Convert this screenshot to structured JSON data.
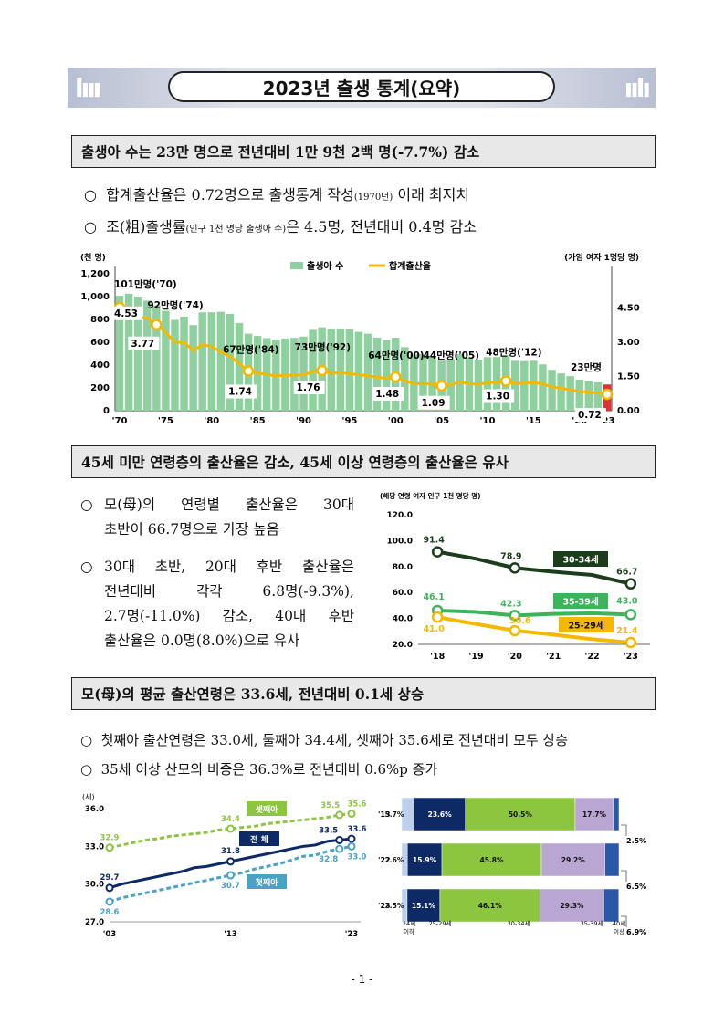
{
  "title": "2023년 출생 통계(요약)",
  "section1": {
    "heading": "출생아 수는 23만 명으로 전년대비 1만 9천 2백 명(-7.7%) 감소",
    "bullets": [
      {
        "mark": "○",
        "a": "합계출산율은 0.72명으로 출생통계 작성",
        "small": "(1970년)",
        "b": " 이래 최저치"
      },
      {
        "mark": "○",
        "a": "조(粗)출생률",
        "small": "(인구 1천 명당 출생아 수)",
        "b": "은 4.5명, 전년대비 0.4명 감소"
      }
    ]
  },
  "chart1": {
    "type": "bar+line",
    "ylabel_left": "(천 명)",
    "ylabel_right": "(가임 여자 1명당 명)",
    "legend": [
      "출생아 수",
      "합계출산율"
    ],
    "yticks_left": [
      "0",
      "200",
      "400",
      "600",
      "800",
      "1,000",
      "1,200"
    ],
    "yticks_right": [
      "0.00",
      "1.50",
      "3.00",
      "4.50"
    ],
    "xticks": [
      "'70",
      "'75",
      "'80",
      "'85",
      "'90",
      "'95",
      "'00",
      "'05",
      "'10",
      "'15",
      "'20",
      "'23"
    ],
    "births_labels": [
      "101만명('70)",
      "92만명('74)",
      "67만명('84)",
      "73만명('92)",
      "64만명('00)",
      "44만명('05)",
      "48만명('12)",
      "23만명"
    ],
    "tfr_labels": [
      "4.53",
      "3.77",
      "1.74",
      "1.76",
      "1.48",
      "1.09",
      "1.30",
      "0.72"
    ],
    "colors": {
      "bar": "#8fd19e",
      "line": "#f5b800"
    }
  },
  "chart_data": [
    {
      "type": "bar",
      "title": "",
      "xlabel": "",
      "ylabel": "(천 명)",
      "ylim": [
        0,
        1200
      ],
      "x": [
        1970,
        1971,
        1972,
        1973,
        1974,
        1975,
        1976,
        1977,
        1978,
        1979,
        1980,
        1981,
        1982,
        1983,
        1984,
        1985,
        1986,
        1987,
        1988,
        1989,
        1990,
        1991,
        1992,
        1993,
        1994,
        1995,
        1996,
        1997,
        1998,
        1999,
        2000,
        2001,
        2002,
        2003,
        2004,
        2005,
        2006,
        2007,
        2008,
        2009,
        2010,
        2011,
        2012,
        2013,
        2014,
        2015,
        2016,
        2017,
        2018,
        2019,
        2020,
        2021,
        2022,
        2023
      ],
      "series": [
        {
          "name": "출생아 수",
          "values": [
            1007,
            1025,
            1000,
            965,
            924,
            875,
            796,
            825,
            750,
            862,
            863,
            867,
            848,
            769,
            675,
            655,
            636,
            623,
            633,
            639,
            650,
            709,
            731,
            716,
            721,
            715,
            691,
            675,
            641,
            620,
            640,
            557,
            495,
            495,
            476,
            438,
            451,
            497,
            466,
            445,
            470,
            471,
            485,
            437,
            435,
            438,
            406,
            358,
            327,
            303,
            272,
            261,
            249,
            230
          ]
        },
        {
          "name": "합계출산율",
          "values": [
            4.53,
            4.54,
            4.12,
            4.07,
            3.77,
            3.43,
            3.0,
            2.99,
            2.64,
            2.9,
            2.82,
            2.57,
            2.39,
            2.06,
            1.74,
            1.66,
            1.58,
            1.53,
            1.55,
            1.56,
            1.57,
            1.71,
            1.76,
            1.65,
            1.66,
            1.63,
            1.57,
            1.54,
            1.46,
            1.43,
            1.48,
            1.31,
            1.18,
            1.19,
            1.16,
            1.09,
            1.13,
            1.26,
            1.19,
            1.15,
            1.23,
            1.24,
            1.3,
            1.19,
            1.21,
            1.24,
            1.17,
            1.05,
            0.98,
            0.92,
            0.84,
            0.81,
            0.78,
            0.72
          ]
        }
      ]
    },
    {
      "type": "line",
      "title": "",
      "ylabel": "(해당 연령 여자 인구 1천 명당 명)",
      "categories": [
        "'18",
        "'19",
        "'20",
        "'21",
        "'22",
        "'23"
      ],
      "ylim": [
        20,
        120
      ],
      "series": [
        {
          "name": "30-34세",
          "values": [
            91.4,
            86.0,
            78.9,
            76.0,
            73.5,
            66.7
          ],
          "color": "#1b3d1b"
        },
        {
          "name": "35-39세",
          "values": [
            46.1,
            45.0,
            42.3,
            43.5,
            44.0,
            43.0
          ],
          "color": "#3cb55a"
        },
        {
          "name": "25-29세",
          "values": [
            41.0,
            35.7,
            30.6,
            27.5,
            24.0,
            21.4
          ],
          "color": "#f5b800"
        }
      ]
    },
    {
      "type": "line",
      "title": "",
      "ylabel": "(세)",
      "x": [
        2003,
        2004,
        2005,
        2006,
        2007,
        2008,
        2009,
        2010,
        2011,
        2012,
        2013,
        2014,
        2015,
        2016,
        2017,
        2018,
        2019,
        2020,
        2021,
        2022,
        2023
      ],
      "ylim": [
        27,
        36
      ],
      "series": [
        {
          "name": "셋째아",
          "values": [
            32.9,
            33.1,
            33.3,
            33.5,
            33.6,
            33.8,
            33.9,
            34.0,
            34.1,
            34.3,
            34.4,
            34.5,
            34.6,
            34.8,
            34.9,
            35.0,
            35.1,
            35.2,
            35.3,
            35.5,
            35.6
          ],
          "color": "#8cc63f"
        },
        {
          "name": "전 체",
          "values": [
            29.7,
            30.0,
            30.2,
            30.4,
            30.6,
            30.8,
            31.0,
            31.3,
            31.4,
            31.6,
            31.8,
            32.0,
            32.2,
            32.4,
            32.6,
            32.8,
            33.0,
            33.1,
            33.4,
            33.5,
            33.6
          ],
          "color": "#0d2a66"
        },
        {
          "name": "첫째아",
          "values": [
            28.6,
            28.9,
            29.1,
            29.3,
            29.5,
            29.7,
            29.9,
            30.1,
            30.3,
            30.5,
            30.7,
            30.9,
            31.2,
            31.4,
            31.6,
            31.9,
            32.2,
            32.3,
            32.6,
            32.8,
            33.0
          ],
          "color": "#4aa3c7"
        }
      ]
    },
    {
      "type": "bar",
      "title": "",
      "categories": [
        "'13",
        "'22",
        "'23"
      ],
      "series": [
        {
          "name": "24세 이하",
          "values": [
            5.7,
            2.6,
            2.5
          ]
        },
        {
          "name": "25-29세",
          "values": [
            23.6,
            15.9,
            15.1
          ]
        },
        {
          "name": "30-34세",
          "values": [
            50.5,
            45.8,
            46.1
          ]
        },
        {
          "name": "35-39세",
          "values": [
            17.7,
            29.2,
            29.3
          ]
        },
        {
          "name": "40세 이상",
          "values": [
            2.5,
            6.5,
            6.9
          ]
        }
      ]
    }
  ],
  "section2": {
    "heading": "45세 미만 연령층의 출산율은 감소, 45세 이상 연령층의 출산율은 유사",
    "b1": {
      "mark": "○",
      "l1": [
        "모(母)의",
        "연령별",
        "출산율은",
        "30대"
      ],
      "l2": "초반이 66.7명으로 가장 높음"
    },
    "b2": {
      "mark": "○",
      "l1": [
        "30대",
        "초반,",
        "20대",
        "후반",
        "출산율은"
      ],
      "l2": [
        "전년대비",
        "각각",
        "6.8명(-9.3%),"
      ],
      "l3": [
        "2.7명(-11.0%)",
        "감소,",
        "40대",
        "후반"
      ],
      "l4": "출산율은 0.0명(8.0%)으로 유사"
    }
  },
  "chart2": {
    "ylabel": "(해당 연령 여자 인구 1천 명당 명)",
    "yticks": [
      "20.0",
      "40.0",
      "60.0",
      "80.0",
      "100.0",
      "120.0"
    ],
    "xticks": [
      "'18",
      "'19",
      "'20",
      "'21",
      "'22",
      "'23"
    ],
    "labels": {
      "a": [
        "91.4",
        "78.9",
        "66.7"
      ],
      "b": [
        "46.1",
        "42.3",
        "43.0"
      ],
      "c": [
        "41.0",
        "30.6",
        "21.4"
      ]
    },
    "legend": [
      "30-34세",
      "35-39세",
      "25-29세"
    ]
  },
  "section3": {
    "heading": "모(母)의 평균 출산연령은 33.6세, 전년대비 0.1세 상승",
    "bullets": [
      {
        "mark": "○",
        "text": "첫째아 출산연령은 33.0세, 둘째아 34.4세, 셋째아 35.6세로 전년대비 모두 상승"
      },
      {
        "mark": "○",
        "text": "35세 이상 산모의 비중은 36.3%로 전년대비 0.6%p 증가"
      }
    ]
  },
  "chart3": {
    "ylabel": "(세)",
    "yticks": [
      "27.0",
      "30.0",
      "33.0",
      "36.0"
    ],
    "xticks": [
      "'03",
      "'13",
      "'23"
    ],
    "labels": {
      "third": [
        "32.9",
        "34.4",
        "35.5",
        "35.6"
      ],
      "all": [
        "29.7",
        "31.8",
        "33.5",
        "33.6"
      ],
      "first": [
        "28.6",
        "30.7",
        "32.8",
        "33.0"
      ]
    },
    "legend": [
      "셋째아",
      "전 체",
      "첫째아"
    ]
  },
  "chart4": {
    "rows": [
      {
        "year": "'13",
        "vals": [
          "5.7%",
          "23.6%",
          "50.5%",
          "17.7%"
        ],
        "after": "2.5%"
      },
      {
        "year": "'22",
        "vals": [
          "2.6%",
          "15.9%",
          "45.8%",
          "29.2%"
        ],
        "after": "6.5%"
      },
      {
        "year": "'23",
        "vals": [
          "2.5%",
          "15.1%",
          "46.1%",
          "29.3%"
        ],
        "after": "6.9%"
      }
    ],
    "xlabels": [
      [
        "24세",
        "이하"
      ],
      [
        "25-29세"
      ],
      [
        "30-34세"
      ],
      [
        "35-39세"
      ],
      [
        "40세",
        "이상"
      ]
    ]
  },
  "page_number": "- 1 -"
}
